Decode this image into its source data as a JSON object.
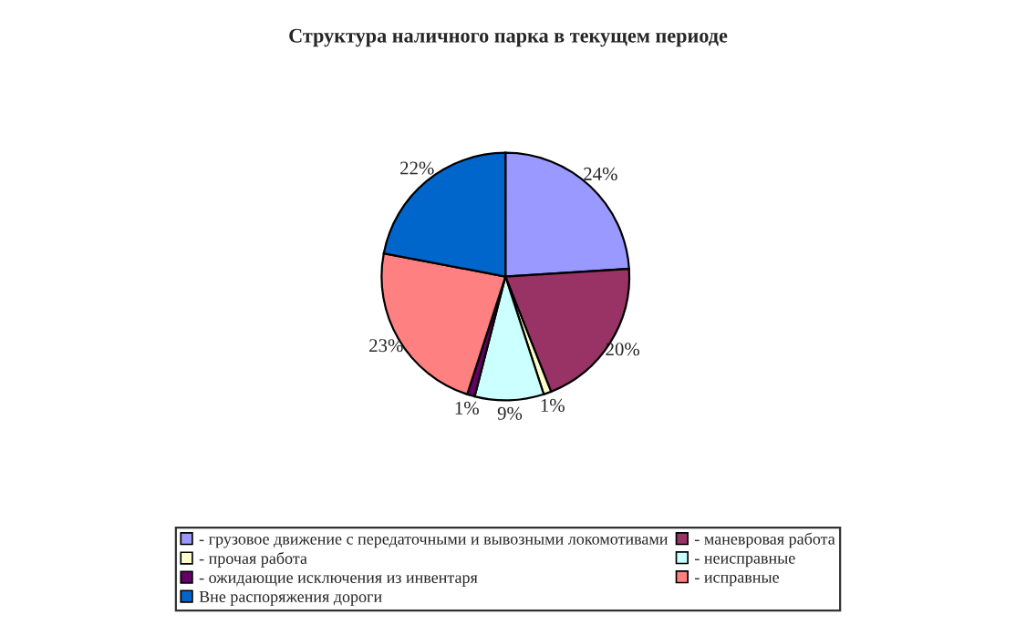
{
  "chart_data": {
    "type": "pie",
    "title": "Структура наличного парка в текущем периоде",
    "categories": [
      "- грузовое движение с передаточными и вывозными локомотивами",
      "- маневровая работа",
      "- прочая работа",
      "- неисправные",
      "- ожидающие исключения из инвентаря",
      "- исправные",
      "Вне распоряжения дороги"
    ],
    "values": [
      24,
      20,
      1,
      9,
      1,
      23,
      22
    ],
    "value_labels": [
      "24%",
      "20%",
      "1%",
      "9%",
      "1%",
      "23%",
      "22%"
    ],
    "colors": [
      "#9999ff",
      "#993366",
      "#ffffcc",
      "#ccffff",
      "#660066",
      "#ff8080",
      "#0066cc"
    ],
    "legend": "bottom"
  }
}
